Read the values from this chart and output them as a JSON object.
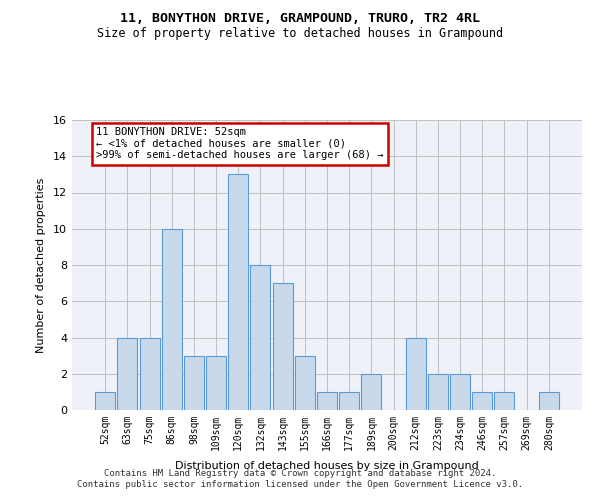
{
  "title1": "11, BONYTHON DRIVE, GRAMPOUND, TRURO, TR2 4RL",
  "title2": "Size of property relative to detached houses in Grampound",
  "xlabel": "Distribution of detached houses by size in Grampound",
  "ylabel": "Number of detached properties",
  "categories": [
    "52sqm",
    "63sqm",
    "75sqm",
    "86sqm",
    "98sqm",
    "109sqm",
    "120sqm",
    "132sqm",
    "143sqm",
    "155sqm",
    "166sqm",
    "177sqm",
    "189sqm",
    "200sqm",
    "212sqm",
    "223sqm",
    "234sqm",
    "246sqm",
    "257sqm",
    "269sqm",
    "280sqm"
  ],
  "values": [
    1,
    4,
    4,
    10,
    3,
    3,
    13,
    8,
    7,
    3,
    1,
    1,
    2,
    0,
    4,
    2,
    2,
    1,
    1,
    0,
    1
  ],
  "bar_color": "#c9d9ec",
  "bar_edge_color": "#5b9bd5",
  "annotation_text_line1": "11 BONYTHON DRIVE: 52sqm",
  "annotation_text_line2": "← <1% of detached houses are smaller (0)",
  "annotation_text_line3": ">99% of semi-detached houses are larger (68) →",
  "annotation_box_color": "#ffffff",
  "annotation_box_edge_color": "#cc0000",
  "ylim": [
    0,
    16
  ],
  "yticks": [
    0,
    2,
    4,
    6,
    8,
    10,
    12,
    14,
    16
  ],
  "grid_color": "#c0c0c0",
  "background_color": "#eef2f8",
  "footer1": "Contains HM Land Registry data © Crown copyright and database right 2024.",
  "footer2": "Contains public sector information licensed under the Open Government Licence v3.0."
}
